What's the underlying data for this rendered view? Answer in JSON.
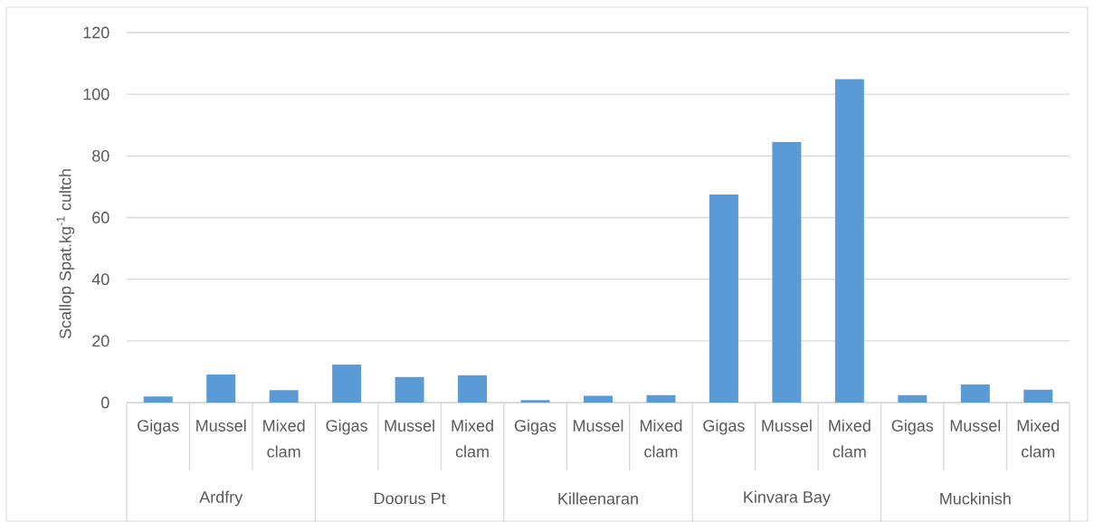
{
  "chart_data": {
    "type": "bar",
    "ylabel": "Scallop Spat.kg$^{-1}$ cultch",
    "categories": [
      "Gigas",
      "Mussel",
      "Mixed clam",
      "Gigas",
      "Mussel",
      "Mixed clam",
      "Gigas",
      "Mussel",
      "Mixed clam",
      "Gigas",
      "Mussel",
      "Mixed clam",
      "Gigas",
      "Mussel",
      "Mixed clam"
    ],
    "values": [
      2.0,
      9.1,
      4.0,
      12.3,
      8.3,
      8.9,
      0.8,
      2.2,
      2.4,
      67.5,
      84.5,
      104.9,
      2.4,
      5.9,
      4.2
    ],
    "color": "#5b9bd5",
    "ylim": [
      0,
      120
    ],
    "yticks": [
      0,
      20,
      40,
      60,
      80,
      100,
      120
    ],
    "grid": "y",
    "annotations": [
      "Ardfry",
      "Doorus Pt",
      "Killeenaran",
      "Kinvara Bay",
      "Muckinish"
    ]
  }
}
